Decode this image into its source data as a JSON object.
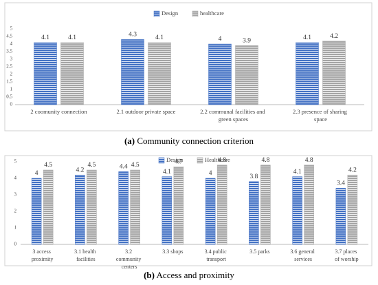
{
  "chart_data": [
    {
      "type": "bar",
      "categories": [
        "2 coomunity connection",
        "2.1 outdoor private space",
        "2.2 communal facilities and green spaces",
        "2.3 presence of sharing space"
      ],
      "series": [
        {
          "name": "Design",
          "color": "#4472c4",
          "values": [
            4.1,
            4.3,
            4,
            4.1
          ]
        },
        {
          "name": "healthcare",
          "color": "#a5a5a5",
          "values": [
            4.1,
            4.1,
            3.9,
            4.2
          ]
        }
      ],
      "ylim": [
        0,
        5
      ],
      "yticks": [
        0,
        0.5,
        1,
        1.5,
        2,
        2.5,
        3,
        3.5,
        4,
        4.5,
        5
      ],
      "grid": false,
      "legend": "top",
      "caption_label": "(a)",
      "caption": "Community connection criterion"
    },
    {
      "type": "bar",
      "categories": [
        "3 access proximity",
        "3.1 health facilities",
        "3.2 community centers",
        "3.3 shops",
        "3.4 public transport",
        "3.5 parks",
        "3.6 general services",
        "3.7 places of worship"
      ],
      "series": [
        {
          "name": "Design",
          "color": "#4472c4",
          "values": [
            4,
            4.2,
            4.4,
            4.1,
            4,
            3.8,
            4.1,
            3.4
          ]
        },
        {
          "name": "Healthcare",
          "color": "#a5a5a5",
          "values": [
            4.5,
            4.5,
            4.5,
            4.7,
            4.8,
            4.8,
            4.8,
            4.2
          ]
        }
      ],
      "ylim": [
        0,
        5
      ],
      "yticks": [
        0,
        1,
        2,
        3,
        4,
        5
      ],
      "grid": false,
      "legend": "top",
      "caption_label": "(b)",
      "caption": "Access and proximity"
    }
  ]
}
